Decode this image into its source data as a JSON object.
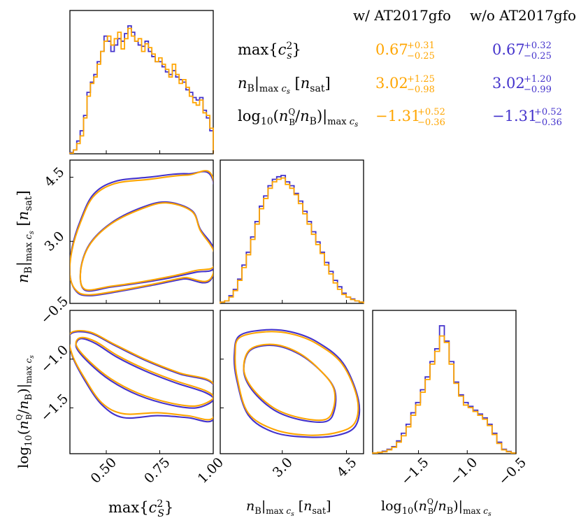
{
  "colors": {
    "with": "#ffa500",
    "without": "#4433cc",
    "axis": "#000000"
  },
  "legend": {
    "with_header": "w/ AT2017gfo",
    "without_header": "w/o AT2017gfo",
    "rows": [
      {
        "param": "max{c_s^2}",
        "with": {
          "median": "0.67",
          "plus": "+0.31",
          "minus": "−0.25"
        },
        "without": {
          "median": "0.67",
          "plus": "+0.32",
          "minus": "−0.25"
        }
      },
      {
        "param": "n_B|max c_s [n_sat]",
        "with": {
          "median": "3.02",
          "plus": "+1.25",
          "minus": "−0.98"
        },
        "without": {
          "median": "3.02",
          "plus": "+1.20",
          "minus": "−0.99"
        }
      },
      {
        "param": "log10(n_B^Q/n_B)|max c_s",
        "with": {
          "median": "−1.31",
          "plus": "+0.52",
          "minus": "−0.36"
        },
        "without": {
          "median": "−1.31",
          "plus": "+0.52",
          "minus": "−0.36"
        }
      }
    ]
  },
  "chart_data": {
    "type": "corner",
    "parameters": [
      {
        "name": "max_cs2",
        "label": "max{c_S^2}",
        "range": [
          0.33,
          1.0
        ],
        "ticks": [
          0.5,
          0.75,
          1.0
        ],
        "tick_labels": [
          "0.50",
          "0.75",
          "1.00"
        ]
      },
      {
        "name": "nB_at_max_cs",
        "label": "n_B|max c_s [n_sat]",
        "range": [
          1.55,
          4.9
        ],
        "ticks": [
          3.0,
          4.5
        ],
        "tick_labels": [
          "3.0",
          "4.5"
        ]
      },
      {
        "name": "log10_nBQ_over_nB",
        "label": "log10(n_B^Q/n_B)|max c_s",
        "range": [
          -1.97,
          -0.5
        ],
        "ticks": [
          -1.5,
          -1.0,
          -0.5
        ],
        "tick_labels": [
          "−1.5",
          "−1.0",
          "−0.5"
        ]
      }
    ],
    "series": [
      {
        "name": "w/ AT2017gfo",
        "color": "#ffa500"
      },
      {
        "name": "w/o AT2017gfo",
        "color": "#4433cc"
      }
    ],
    "histograms": [
      {
        "param": "max_cs2",
        "bin_range": [
          0.33,
          1.0
        ],
        "with": [
          0.005,
          0.03,
          0.08,
          0.14,
          0.28,
          0.45,
          0.55,
          0.6,
          0.7,
          0.8,
          0.88,
          0.92,
          0.85,
          0.9,
          0.95,
          0.82,
          0.9,
          0.98,
          0.92,
          0.88,
          0.9,
          0.8,
          0.86,
          0.83,
          0.78,
          0.72,
          0.75,
          0.7,
          0.66,
          0.6,
          0.7,
          0.62,
          0.55,
          0.58,
          0.52,
          0.45,
          0.4,
          0.38,
          0.42,
          0.32,
          0.3,
          0.2
        ],
        "without": [
          0.01,
          0.03,
          0.1,
          0.18,
          0.3,
          0.48,
          0.56,
          0.62,
          0.72,
          0.8,
          0.92,
          0.88,
          0.8,
          0.85,
          0.9,
          0.88,
          0.94,
          1.0,
          0.95,
          0.88,
          0.85,
          0.84,
          0.88,
          0.8,
          0.76,
          0.72,
          0.72,
          0.68,
          0.64,
          0.62,
          0.65,
          0.6,
          0.58,
          0.56,
          0.5,
          0.48,
          0.44,
          0.42,
          0.44,
          0.34,
          0.28,
          0.18
        ]
      },
      {
        "param": "nB_at_max_cs",
        "bin_range": [
          1.55,
          4.9
        ],
        "with": [
          0.01,
          0.02,
          0.05,
          0.1,
          0.18,
          0.28,
          0.38,
          0.5,
          0.62,
          0.74,
          0.82,
          0.9,
          0.95,
          0.97,
          0.98,
          0.93,
          0.9,
          0.85,
          0.78,
          0.7,
          0.62,
          0.54,
          0.46,
          0.39,
          0.3,
          0.23,
          0.16,
          0.11,
          0.07,
          0.05,
          0.03,
          0.02,
          0.01
        ],
        "without": [
          0.01,
          0.02,
          0.06,
          0.11,
          0.19,
          0.3,
          0.4,
          0.52,
          0.64,
          0.76,
          0.84,
          0.92,
          0.97,
          0.99,
          1.0,
          0.95,
          0.92,
          0.86,
          0.8,
          0.72,
          0.64,
          0.56,
          0.48,
          0.4,
          0.32,
          0.25,
          0.18,
          0.13,
          0.08,
          0.05,
          0.035,
          0.02,
          0.01
        ]
      },
      {
        "param": "log10_nBQ_over_nB",
        "bin_range": [
          -1.97,
          -0.5
        ],
        "with": [
          0.005,
          0.01,
          0.015,
          0.03,
          0.05,
          0.09,
          0.14,
          0.21,
          0.3,
          0.38,
          0.48,
          0.58,
          0.7,
          0.8,
          0.92,
          0.87,
          0.7,
          0.55,
          0.45,
          0.38,
          0.36,
          0.33,
          0.3,
          0.27,
          0.22,
          0.15,
          0.08,
          0.03,
          0.015,
          0.005
        ],
        "without": [
          0.005,
          0.01,
          0.02,
          0.035,
          0.055,
          0.1,
          0.16,
          0.23,
          0.32,
          0.4,
          0.5,
          0.6,
          0.72,
          0.82,
          1.0,
          0.88,
          0.72,
          0.56,
          0.46,
          0.4,
          0.37,
          0.34,
          0.31,
          0.28,
          0.23,
          0.16,
          0.09,
          0.035,
          0.018,
          0.006
        ]
      }
    ],
    "contours": [
      {
        "x": "max_cs2",
        "y": "nB_at_max_cs",
        "with": [
          [
            [
              0.4,
              1.88
            ],
            [
              0.52,
              1.95
            ],
            [
              0.66,
              2.05
            ],
            [
              0.8,
              2.18
            ],
            [
              0.92,
              2.32
            ],
            [
              1.0,
              2.4
            ],
            [
              1.0,
              2.8
            ],
            [
              0.94,
              3.25
            ],
            [
              0.9,
              3.7
            ],
            [
              0.78,
              3.9
            ],
            [
              0.66,
              3.75
            ],
            [
              0.52,
              3.4
            ],
            [
              0.42,
              2.9
            ],
            [
              0.38,
              2.3
            ]
          ],
          [
            [
              0.42,
              1.75
            ],
            [
              0.56,
              1.85
            ],
            [
              0.72,
              2.0
            ],
            [
              0.86,
              2.15
            ],
            [
              1.0,
              2.25
            ],
            [
              1.0,
              4.45
            ],
            [
              0.88,
              4.55
            ],
            [
              0.7,
              4.45
            ],
            [
              0.54,
              4.35
            ],
            [
              0.44,
              4.05
            ],
            [
              0.38,
              3.45
            ],
            [
              0.34,
              2.8
            ],
            [
              0.33,
              2.2
            ],
            [
              0.36,
              1.85
            ]
          ]
        ],
        "without": [
          [
            [
              0.4,
              1.86
            ],
            [
              0.52,
              1.93
            ],
            [
              0.66,
              2.03
            ],
            [
              0.8,
              2.15
            ],
            [
              0.92,
              2.28
            ],
            [
              1.0,
              2.36
            ],
            [
              1.0,
              2.85
            ],
            [
              0.94,
              3.28
            ],
            [
              0.9,
              3.72
            ],
            [
              0.78,
              3.92
            ],
            [
              0.66,
              3.78
            ],
            [
              0.52,
              3.42
            ],
            [
              0.42,
              2.92
            ],
            [
              0.38,
              2.32
            ]
          ],
          [
            [
              0.42,
              1.73
            ],
            [
              0.56,
              1.83
            ],
            [
              0.72,
              1.98
            ],
            [
              0.86,
              2.12
            ],
            [
              1.0,
              2.22
            ],
            [
              1.0,
              4.4
            ],
            [
              0.88,
              4.58
            ],
            [
              0.7,
              4.5
            ],
            [
              0.54,
              4.4
            ],
            [
              0.44,
              4.1
            ],
            [
              0.38,
              3.5
            ],
            [
              0.34,
              2.85
            ],
            [
              0.33,
              2.22
            ],
            [
              0.36,
              1.83
            ]
          ]
        ]
      },
      {
        "x": "max_cs2",
        "y": "log10_nBQ_over_nB",
        "with": [
          [
            [
              0.38,
              -0.78
            ],
            [
              0.45,
              -0.82
            ],
            [
              0.55,
              -0.96
            ],
            [
              0.68,
              -1.1
            ],
            [
              0.82,
              -1.22
            ],
            [
              0.96,
              -1.32
            ],
            [
              1.0,
              -1.4
            ],
            [
              0.92,
              -1.48
            ],
            [
              0.8,
              -1.45
            ],
            [
              0.65,
              -1.35
            ],
            [
              0.52,
              -1.2
            ],
            [
              0.42,
              -1.02
            ],
            [
              0.36,
              -0.86
            ]
          ],
          [
            [
              0.33,
              -0.74
            ],
            [
              0.42,
              -0.72
            ],
            [
              0.54,
              -0.85
            ],
            [
              0.68,
              -1.0
            ],
            [
              0.84,
              -1.14
            ],
            [
              1.0,
              -1.25
            ],
            [
              1.0,
              -1.6
            ],
            [
              0.88,
              -1.58
            ],
            [
              0.74,
              -1.55
            ],
            [
              0.58,
              -1.56
            ],
            [
              0.48,
              -1.45
            ],
            [
              0.4,
              -1.2
            ],
            [
              0.34,
              -0.95
            ]
          ]
        ],
        "without": [
          [
            [
              0.38,
              -0.79
            ],
            [
              0.45,
              -0.84
            ],
            [
              0.55,
              -0.98
            ],
            [
              0.68,
              -1.12
            ],
            [
              0.82,
              -1.24
            ],
            [
              0.96,
              -1.34
            ],
            [
              1.0,
              -1.42
            ],
            [
              0.92,
              -1.5
            ],
            [
              0.8,
              -1.47
            ],
            [
              0.65,
              -1.37
            ],
            [
              0.52,
              -1.22
            ],
            [
              0.42,
              -1.04
            ],
            [
              0.36,
              -0.88
            ]
          ],
          [
            [
              0.33,
              -0.75
            ],
            [
              0.42,
              -0.73
            ],
            [
              0.54,
              -0.86
            ],
            [
              0.68,
              -1.01
            ],
            [
              0.84,
              -1.15
            ],
            [
              1.0,
              -1.26
            ],
            [
              1.0,
              -1.62
            ],
            [
              0.88,
              -1.6
            ],
            [
              0.74,
              -1.58
            ],
            [
              0.58,
              -1.6
            ],
            [
              0.48,
              -1.47
            ],
            [
              0.4,
              -1.22
            ],
            [
              0.34,
              -0.96
            ]
          ]
        ]
      },
      {
        "x": "nB_at_max_cs",
        "y": "log10_nBQ_over_nB",
        "with": [
          [
            [
              2.25,
              -0.9
            ],
            [
              2.8,
              -0.85
            ],
            [
              3.4,
              -0.94
            ],
            [
              3.9,
              -1.12
            ],
            [
              4.2,
              -1.3
            ],
            [
              4.2,
              -1.5
            ],
            [
              4.0,
              -1.62
            ],
            [
              3.4,
              -1.6
            ],
            [
              2.8,
              -1.5
            ],
            [
              2.3,
              -1.3
            ],
            [
              2.1,
              -1.1
            ]
          ],
          [
            [
              2.0,
              -0.78
            ],
            [
              2.6,
              -0.72
            ],
            [
              3.2,
              -0.74
            ],
            [
              3.8,
              -0.84
            ],
            [
              4.4,
              -1.05
            ],
            [
              4.75,
              -1.4
            ],
            [
              4.7,
              -1.65
            ],
            [
              4.3,
              -1.75
            ],
            [
              3.6,
              -1.78
            ],
            [
              2.8,
              -1.72
            ],
            [
              2.2,
              -1.55
            ],
            [
              1.95,
              -1.2
            ],
            [
              1.9,
              -0.95
            ]
          ]
        ],
        "without": [
          [
            [
              2.25,
              -0.91
            ],
            [
              2.8,
              -0.86
            ],
            [
              3.4,
              -0.95
            ],
            [
              3.92,
              -1.13
            ],
            [
              4.22,
              -1.31
            ],
            [
              4.22,
              -1.52
            ],
            [
              4.02,
              -1.64
            ],
            [
              3.4,
              -1.62
            ],
            [
              2.8,
              -1.52
            ],
            [
              2.3,
              -1.32
            ],
            [
              2.1,
              -1.12
            ]
          ],
          [
            [
              2.0,
              -0.76
            ],
            [
              2.6,
              -0.7
            ],
            [
              3.2,
              -0.72
            ],
            [
              3.8,
              -0.82
            ],
            [
              4.42,
              -1.04
            ],
            [
              4.78,
              -1.42
            ],
            [
              4.72,
              -1.68
            ],
            [
              4.3,
              -1.78
            ],
            [
              3.6,
              -1.8
            ],
            [
              2.8,
              -1.75
            ],
            [
              2.2,
              -1.57
            ],
            [
              1.93,
              -1.2
            ],
            [
              1.88,
              -0.95
            ]
          ]
        ]
      }
    ]
  }
}
